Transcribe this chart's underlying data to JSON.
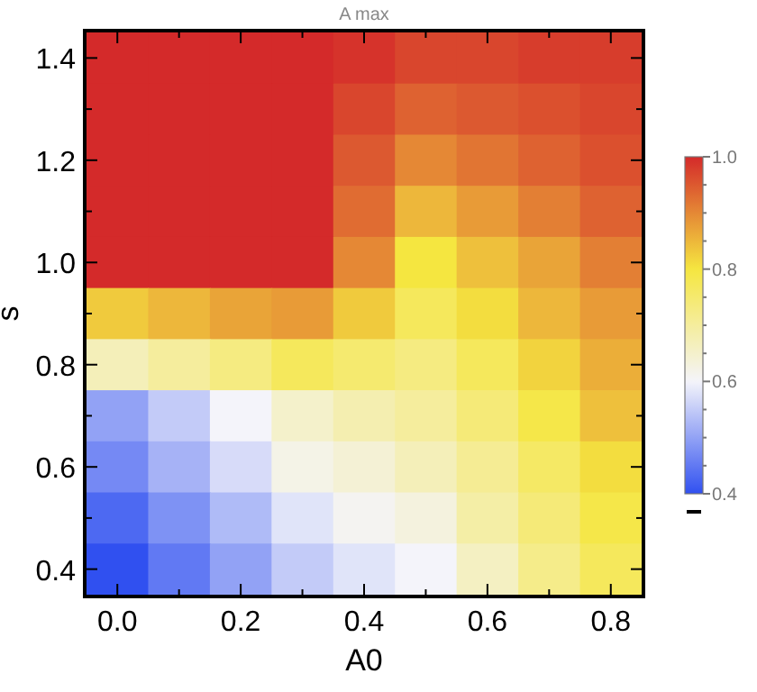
{
  "chart_data": {
    "type": "heatmap",
    "title": "A max",
    "xlabel": "A0",
    "ylabel": "s",
    "categories": [
      "0.0",
      null,
      "0.2",
      null,
      "0.4",
      null,
      "0.6",
      null,
      "0.8"
    ],
    "y_categories": [
      "1.4",
      null,
      "1.2",
      null,
      "1.0",
      null,
      "0.8",
      null,
      "0.6",
      null,
      "0.4"
    ],
    "clim": [
      0.4,
      1
    ],
    "cticks": [
      {
        "value": 0.4,
        "label": "0.4"
      },
      {
        "value": 0.45,
        "label": null
      },
      {
        "value": 0.5,
        "label": null
      },
      {
        "value": 0.55,
        "label": null
      },
      {
        "value": 0.6,
        "label": "0.6"
      },
      {
        "value": 0.65,
        "label": null
      },
      {
        "value": 0.7,
        "label": null
      },
      {
        "value": 0.75,
        "label": null
      },
      {
        "value": 0.8,
        "label": "0.8"
      },
      {
        "value": 0.85,
        "label": null
      },
      {
        "value": 0.9,
        "label": null
      },
      {
        "value": 0.95,
        "label": null
      },
      {
        "value": 1,
        "label": "1.0"
      }
    ],
    "cells": [
      [
        1,
        1,
        1,
        1,
        0.99,
        0.97,
        0.97,
        0.98,
        0.98
      ],
      [
        1,
        1,
        1,
        1,
        0.97,
        0.94,
        0.95,
        0.96,
        0.97
      ],
      [
        1,
        1,
        1,
        1,
        0.95,
        0.9,
        0.92,
        0.94,
        0.96
      ],
      [
        1,
        1,
        1,
        1,
        0.93,
        0.85,
        0.88,
        0.91,
        0.94
      ],
      [
        1,
        1,
        1,
        1,
        0.9,
        0.8,
        0.84,
        0.87,
        0.91
      ],
      [
        0.83,
        0.85,
        0.87,
        0.88,
        0.83,
        0.77,
        0.81,
        0.85,
        0.88
      ],
      [
        0.67,
        0.7,
        0.73,
        0.77,
        0.75,
        0.73,
        0.77,
        0.82,
        0.86
      ],
      [
        0.5,
        0.55,
        0.6,
        0.65,
        0.68,
        0.7,
        0.74,
        0.79,
        0.84
      ],
      [
        0.47,
        0.52,
        0.57,
        0.62,
        0.64,
        0.67,
        0.71,
        0.76,
        0.81
      ],
      [
        0.43,
        0.48,
        0.53,
        0.58,
        0.61,
        0.63,
        0.69,
        0.74,
        0.79
      ],
      [
        0.4,
        0.45,
        0.5,
        0.55,
        0.58,
        0.6,
        0.66,
        0.72,
        0.77
      ]
    ]
  }
}
